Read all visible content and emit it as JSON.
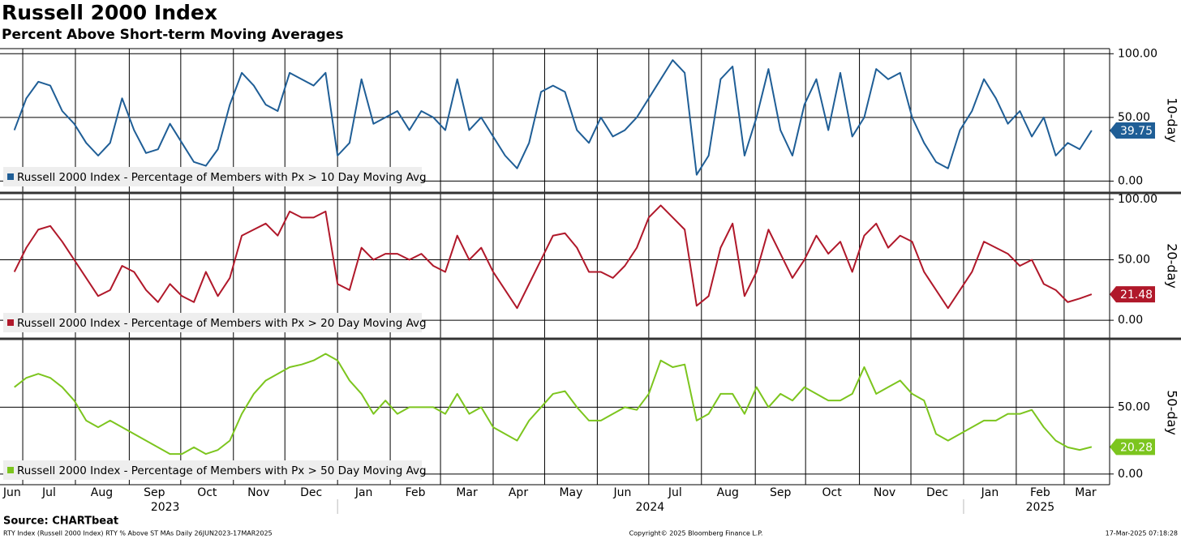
{
  "title": "Russell 2000 Index",
  "subtitle": "Percent Above Short-term Moving Averages",
  "x_axis": {
    "xlim": [
      -1.2,
      91.5
    ],
    "xticks": [
      {
        "value": -0.2,
        "label": "Jun"
      },
      {
        "value": 2.9,
        "label": "Jul"
      },
      {
        "value": 7.3,
        "label": "Aug"
      },
      {
        "value": 11.7,
        "label": "Sep"
      },
      {
        "value": 16.1,
        "label": "Oct"
      },
      {
        "value": 20.4,
        "label": "Nov"
      },
      {
        "value": 24.8,
        "label": "Dec"
      },
      {
        "value": 29.2,
        "label": "Jan"
      },
      {
        "value": 33.5,
        "label": "Feb"
      },
      {
        "value": 37.8,
        "label": "Mar"
      },
      {
        "value": 42.1,
        "label": "Apr"
      },
      {
        "value": 46.5,
        "label": "May"
      },
      {
        "value": 50.8,
        "label": "Jun"
      },
      {
        "value": 55.2,
        "label": "Jul"
      },
      {
        "value": 59.6,
        "label": "Aug"
      },
      {
        "value": 64.0,
        "label": "Sep"
      },
      {
        "value": 68.3,
        "label": "Oct"
      },
      {
        "value": 72.7,
        "label": "Nov"
      },
      {
        "value": 77.1,
        "label": "Dec"
      },
      {
        "value": 81.5,
        "label": "Jan"
      },
      {
        "value": 85.7,
        "label": "Feb"
      },
      {
        "value": 89.5,
        "label": "Mar"
      }
    ],
    "xgrid": [
      0.7,
      5.1,
      9.6,
      13.9,
      18.3,
      22.6,
      27.0,
      31.4,
      35.6,
      40.0,
      44.3,
      48.7,
      53.0,
      57.4,
      61.9,
      66.1,
      70.6,
      74.9,
      79.3,
      83.7,
      87.7
    ],
    "year_labels": [
      {
        "value": 12.6,
        "label": "2023"
      },
      {
        "value": 53.1,
        "label": "2024"
      },
      {
        "value": 85.7,
        "label": "2025"
      }
    ],
    "year_breaks": [
      27.0,
      79.3
    ]
  },
  "chart_data": [
    {
      "type": "line",
      "axis_title": "10-day",
      "ylim": [
        -8,
        104
      ],
      "yticks": [
        {
          "value": 0,
          "label": "0.00"
        },
        {
          "value": 50,
          "label": "50.00"
        },
        {
          "value": 100,
          "label": "100.00"
        }
      ],
      "grid": true,
      "series": [
        {
          "name": "Russell 2000 Index - Percentage of Members with Px > 10 Day Moving Avg",
          "color": "#1f5e96",
          "values": [
            40,
            65,
            78,
            75,
            55,
            45,
            30,
            20,
            30,
            65,
            40,
            22,
            25,
            45,
            30,
            15,
            12,
            25,
            60,
            85,
            75,
            60,
            55,
            85,
            80,
            75,
            85,
            20,
            30,
            80,
            45,
            50,
            55,
            40,
            55,
            50,
            40,
            80,
            40,
            50,
            35,
            20,
            10,
            30,
            70,
            75,
            70,
            40,
            30,
            50,
            35,
            40,
            50,
            65,
            80,
            95,
            85,
            5,
            20,
            80,
            90,
            20,
            50,
            88,
            40,
            20,
            60,
            80,
            40,
            85,
            35,
            50,
            88,
            80,
            85,
            50,
            30,
            15,
            10,
            40,
            55,
            80,
            65,
            45,
            55,
            35,
            50,
            20,
            30,
            25,
            39.75
          ]
        }
      ]
    },
    {
      "type": "line",
      "axis_title": "20-day",
      "ylim": [
        -14,
        104
      ],
      "yticks": [
        {
          "value": 0,
          "label": "0.00"
        },
        {
          "value": 50,
          "label": "50.00"
        },
        {
          "value": 100,
          "label": "100.00"
        }
      ],
      "grid": true,
      "series": [
        {
          "name": "Russell 2000 Index - Percentage of Members with Px > 20 Day Moving Avg",
          "color": "#b0182a",
          "values": [
            40,
            60,
            75,
            78,
            65,
            50,
            35,
            20,
            25,
            45,
            40,
            25,
            15,
            30,
            20,
            15,
            40,
            20,
            35,
            70,
            75,
            80,
            70,
            90,
            85,
            85,
            90,
            30,
            25,
            60,
            50,
            55,
            55,
            50,
            55,
            45,
            40,
            70,
            50,
            60,
            40,
            25,
            10,
            30,
            50,
            70,
            72,
            60,
            40,
            40,
            35,
            45,
            60,
            85,
            95,
            85,
            75,
            12,
            20,
            60,
            80,
            20,
            40,
            75,
            55,
            35,
            50,
            70,
            55,
            65,
            40,
            70,
            80,
            60,
            70,
            65,
            40,
            25,
            10,
            25,
            40,
            65,
            60,
            55,
            45,
            50,
            30,
            25,
            15,
            18,
            21.48
          ]
        }
      ]
    },
    {
      "type": "line",
      "axis_title": "50-day",
      "ylim": [
        -8,
        100
      ],
      "yticks": [
        {
          "value": 0,
          "label": "0.00"
        },
        {
          "value": 50,
          "label": "50.00"
        }
      ],
      "grid": true,
      "series": [
        {
          "name": "Russell 2000 Index - Percentage of Members with Px > 50 Day Moving Avg",
          "color": "#7cc51e",
          "values": [
            65,
            72,
            75,
            72,
            65,
            55,
            40,
            35,
            40,
            35,
            30,
            25,
            20,
            15,
            15,
            20,
            15,
            18,
            25,
            45,
            60,
            70,
            75,
            80,
            82,
            85,
            90,
            85,
            70,
            60,
            45,
            55,
            45,
            50,
            50,
            50,
            45,
            60,
            45,
            50,
            35,
            30,
            25,
            40,
            50,
            60,
            62,
            50,
            40,
            40,
            45,
            50,
            48,
            60,
            85,
            80,
            82,
            40,
            45,
            60,
            60,
            45,
            65,
            50,
            60,
            55,
            65,
            60,
            55,
            55,
            60,
            80,
            60,
            65,
            70,
            60,
            55,
            30,
            25,
            30,
            35,
            40,
            40,
            45,
            45,
            48,
            35,
            25,
            20,
            18,
            20.28
          ]
        }
      ]
    }
  ],
  "footer": {
    "source": "Source: CHARTbeat",
    "description": "RTY Index (Russell 2000 Index) RTY % Above ST MAs  Daily 26JUN2023-17MAR2025",
    "copyright": "Copyright© 2025 Bloomberg Finance L.P.",
    "timestamp": "17-Mar-2025 07:18:28"
  }
}
